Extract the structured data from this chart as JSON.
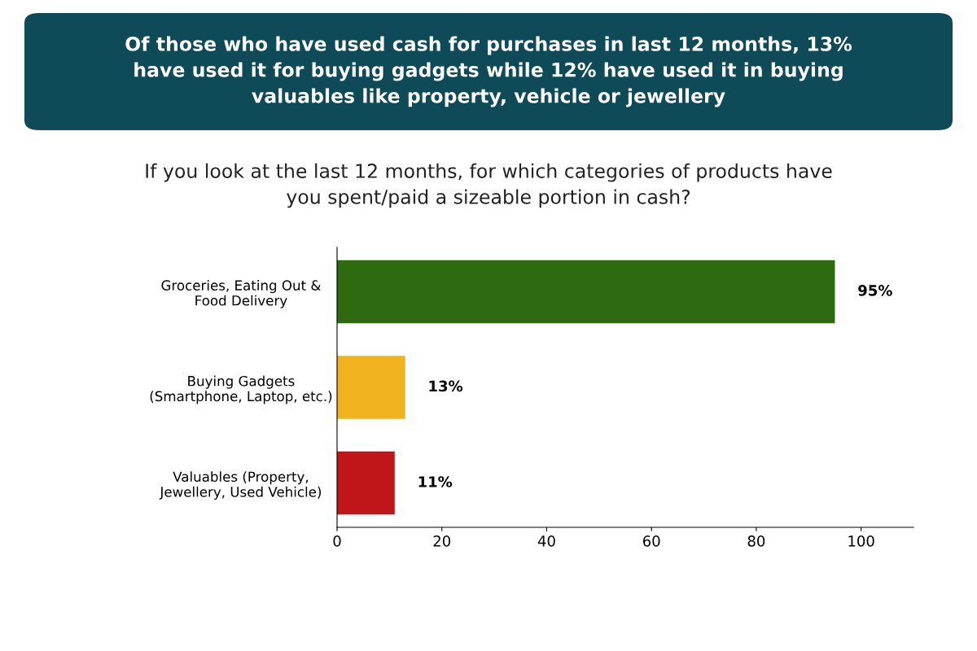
{
  "chart_data": {
    "type": "bar",
    "orientation": "horizontal",
    "title": "Of those who have used cash for purchases in last 12 months, 13%\nhave used it for buying gadgets while 12% have used it in buying\nvaluables like property, vehicle or jewellery",
    "subtitle": "If you look at the last 12 months, for which categories of products have\nyou spent/paid a sizeable portion in cash?",
    "categories": [
      "Groceries, Eating Out &\nFood Delivery",
      "Buying Gadgets\n(Smartphone, Laptop, etc.)",
      "Valuables (Property,\nJewellery, Used Vehicle)"
    ],
    "values": [
      95,
      13,
      11
    ],
    "colors": [
      "#2d6a10",
      "#f0b21f",
      "#c0161a"
    ],
    "value_labels": [
      "95%",
      "13%",
      "11%"
    ],
    "xlim": [
      0,
      110
    ],
    "xticks": [
      0,
      20,
      40,
      60,
      80,
      100
    ],
    "grid": false,
    "legend": false
  }
}
